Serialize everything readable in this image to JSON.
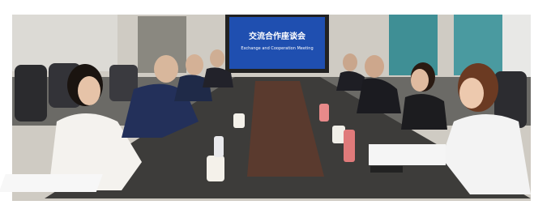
{
  "screen": {
    "title": "交流合作座谈会",
    "subtitle": "Exchange and Cooperation Meeting"
  }
}
